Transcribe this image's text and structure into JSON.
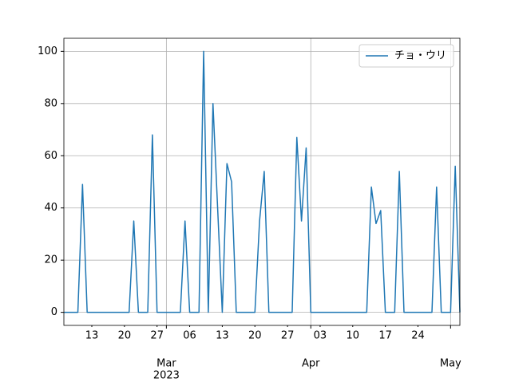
{
  "chart_data": {
    "type": "line",
    "x": [
      "2023-02-07",
      "2023-02-08",
      "2023-02-09",
      "2023-02-10",
      "2023-02-11",
      "2023-02-12",
      "2023-02-13",
      "2023-02-14",
      "2023-02-15",
      "2023-02-16",
      "2023-02-17",
      "2023-02-18",
      "2023-02-19",
      "2023-02-20",
      "2023-02-21",
      "2023-02-22",
      "2023-02-23",
      "2023-02-24",
      "2023-02-25",
      "2023-02-26",
      "2023-02-27",
      "2023-02-28",
      "2023-03-01",
      "2023-03-02",
      "2023-03-03",
      "2023-03-04",
      "2023-03-05",
      "2023-03-06",
      "2023-03-07",
      "2023-03-08",
      "2023-03-09",
      "2023-03-10",
      "2023-03-11",
      "2023-03-12",
      "2023-03-13",
      "2023-03-14",
      "2023-03-15",
      "2023-03-16",
      "2023-03-17",
      "2023-03-18",
      "2023-03-19",
      "2023-03-20",
      "2023-03-21",
      "2023-03-22",
      "2023-03-23",
      "2023-03-24",
      "2023-03-25",
      "2023-03-26",
      "2023-03-27",
      "2023-03-28",
      "2023-03-29",
      "2023-03-30",
      "2023-03-31",
      "2023-04-01",
      "2023-04-02",
      "2023-04-03",
      "2023-04-04",
      "2023-04-05",
      "2023-04-06",
      "2023-04-07",
      "2023-04-08",
      "2023-04-09",
      "2023-04-10",
      "2023-04-11",
      "2023-04-12",
      "2023-04-13",
      "2023-04-14",
      "2023-04-15",
      "2023-04-16",
      "2023-04-17",
      "2023-04-18",
      "2023-04-19",
      "2023-04-20",
      "2023-04-21",
      "2023-04-22",
      "2023-04-23",
      "2023-04-24",
      "2023-04-25",
      "2023-04-26",
      "2023-04-27",
      "2023-04-28",
      "2023-04-29",
      "2023-04-30",
      "2023-05-01",
      "2023-05-02",
      "2023-05-03"
    ],
    "series": [
      {
        "name": "チョ・ウリ",
        "color": "#1f77b4",
        "values": [
          0,
          0,
          0,
          0,
          49,
          0,
          0,
          0,
          0,
          0,
          0,
          0,
          0,
          0,
          0,
          35,
          0,
          0,
          0,
          68,
          0,
          0,
          0,
          0,
          0,
          0,
          35,
          0,
          0,
          0,
          100,
          0,
          80,
          40,
          0,
          57,
          50,
          0,
          0,
          0,
          0,
          0,
          35,
          54,
          0,
          0,
          0,
          0,
          0,
          0,
          67,
          35,
          63,
          0,
          0,
          0,
          0,
          0,
          0,
          0,
          0,
          0,
          0,
          0,
          0,
          0,
          48,
          34,
          39,
          0,
          0,
          0,
          54,
          0,
          0,
          0,
          0,
          0,
          0,
          0,
          48,
          0,
          0,
          0,
          56,
          0
        ]
      }
    ],
    "xlim": [
      "2023-02-07",
      "2023-05-03"
    ],
    "xticks": [
      {
        "value": "2023-03-01",
        "label": "Mar"
      },
      {
        "value": "2023-04-01",
        "label": "Apr"
      },
      {
        "value": "2023-05-01",
        "label": "May"
      }
    ],
    "xticks_minor": [
      {
        "value": "2023-02-13",
        "label": "13"
      },
      {
        "value": "2023-02-20",
        "label": "20"
      },
      {
        "value": "2023-02-27",
        "label": "27"
      },
      {
        "value": "2023-03-06",
        "label": "06"
      },
      {
        "value": "2023-03-13",
        "label": "13"
      },
      {
        "value": "2023-03-20",
        "label": "20"
      },
      {
        "value": "2023-03-27",
        "label": "27"
      },
      {
        "value": "2023-04-03",
        "label": "03"
      },
      {
        "value": "2023-04-10",
        "label": "10"
      },
      {
        "value": "2023-04-17",
        "label": "17"
      },
      {
        "value": "2023-04-24",
        "label": "24"
      }
    ],
    "x_year_label": "2023",
    "ylim": [
      -5,
      105
    ],
    "yticks": [
      0,
      20,
      40,
      60,
      80,
      100
    ],
    "grid": true,
    "legend": "upper right"
  }
}
